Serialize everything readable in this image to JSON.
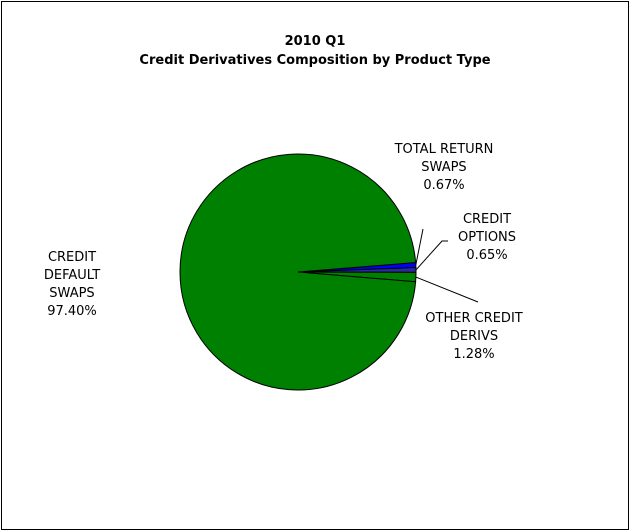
{
  "chart_data": {
    "type": "pie",
    "title": "2010 Q1",
    "subtitle": "Credit Derivatives Composition by Product Type",
    "legend": "none",
    "slices": [
      {
        "label_lines": [
          "TOTAL RETURN",
          "SWAPS"
        ],
        "value": 0.67,
        "value_text": "0.67%",
        "color": "#0000ff"
      },
      {
        "label_lines": [
          "CREDIT",
          "OPTIONS"
        ],
        "value": 0.65,
        "value_text": "0.65%",
        "color": "#2a2aa0"
      },
      {
        "label_lines": [
          "OTHER CREDIT",
          "DERIVS"
        ],
        "value": 1.28,
        "value_text": "1.28%",
        "color": "#008000"
      },
      {
        "label_lines": [
          "CREDIT",
          "DEFAULT",
          "SWAPS"
        ],
        "value": 97.4,
        "value_text": "97.40%",
        "color": "#008000"
      }
    ]
  }
}
